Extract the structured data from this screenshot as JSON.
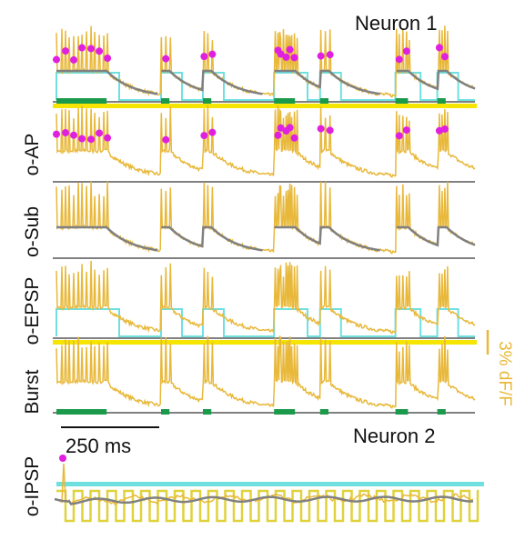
{
  "labels": {
    "neuron1": "Neuron 1",
    "neuron2": "Neuron 2",
    "rows": [
      "o-AP",
      "o-Sub",
      "o-EPSP",
      "Burst",
      "o-IPSP"
    ],
    "time_scale": "250 ms",
    "amp_scale": "3% dF/F"
  },
  "colors": {
    "trace": "#e8b83a",
    "subthreshold": "#808080",
    "spike_marker": "#e020e0",
    "epsp_stim": "#6fe0e0",
    "burst": "#1a9a4a",
    "baseline_bar": "#f5e500",
    "ipsp_stim": "#e0d23c",
    "scale_text": "#e8b83a"
  },
  "bursts": [
    {
      "start": 0.0,
      "end": 0.12,
      "spikes": 13
    },
    {
      "start": 0.25,
      "end": 0.27,
      "spikes": 3
    },
    {
      "start": 0.35,
      "end": 0.37,
      "spikes": 3
    },
    {
      "start": 0.52,
      "end": 0.57,
      "spikes": 11
    },
    {
      "start": 0.63,
      "end": 0.65,
      "spikes": 3
    },
    {
      "start": 0.81,
      "end": 0.84,
      "spikes": 5
    },
    {
      "start": 0.91,
      "end": 0.93,
      "spikes": 4
    }
  ]
}
